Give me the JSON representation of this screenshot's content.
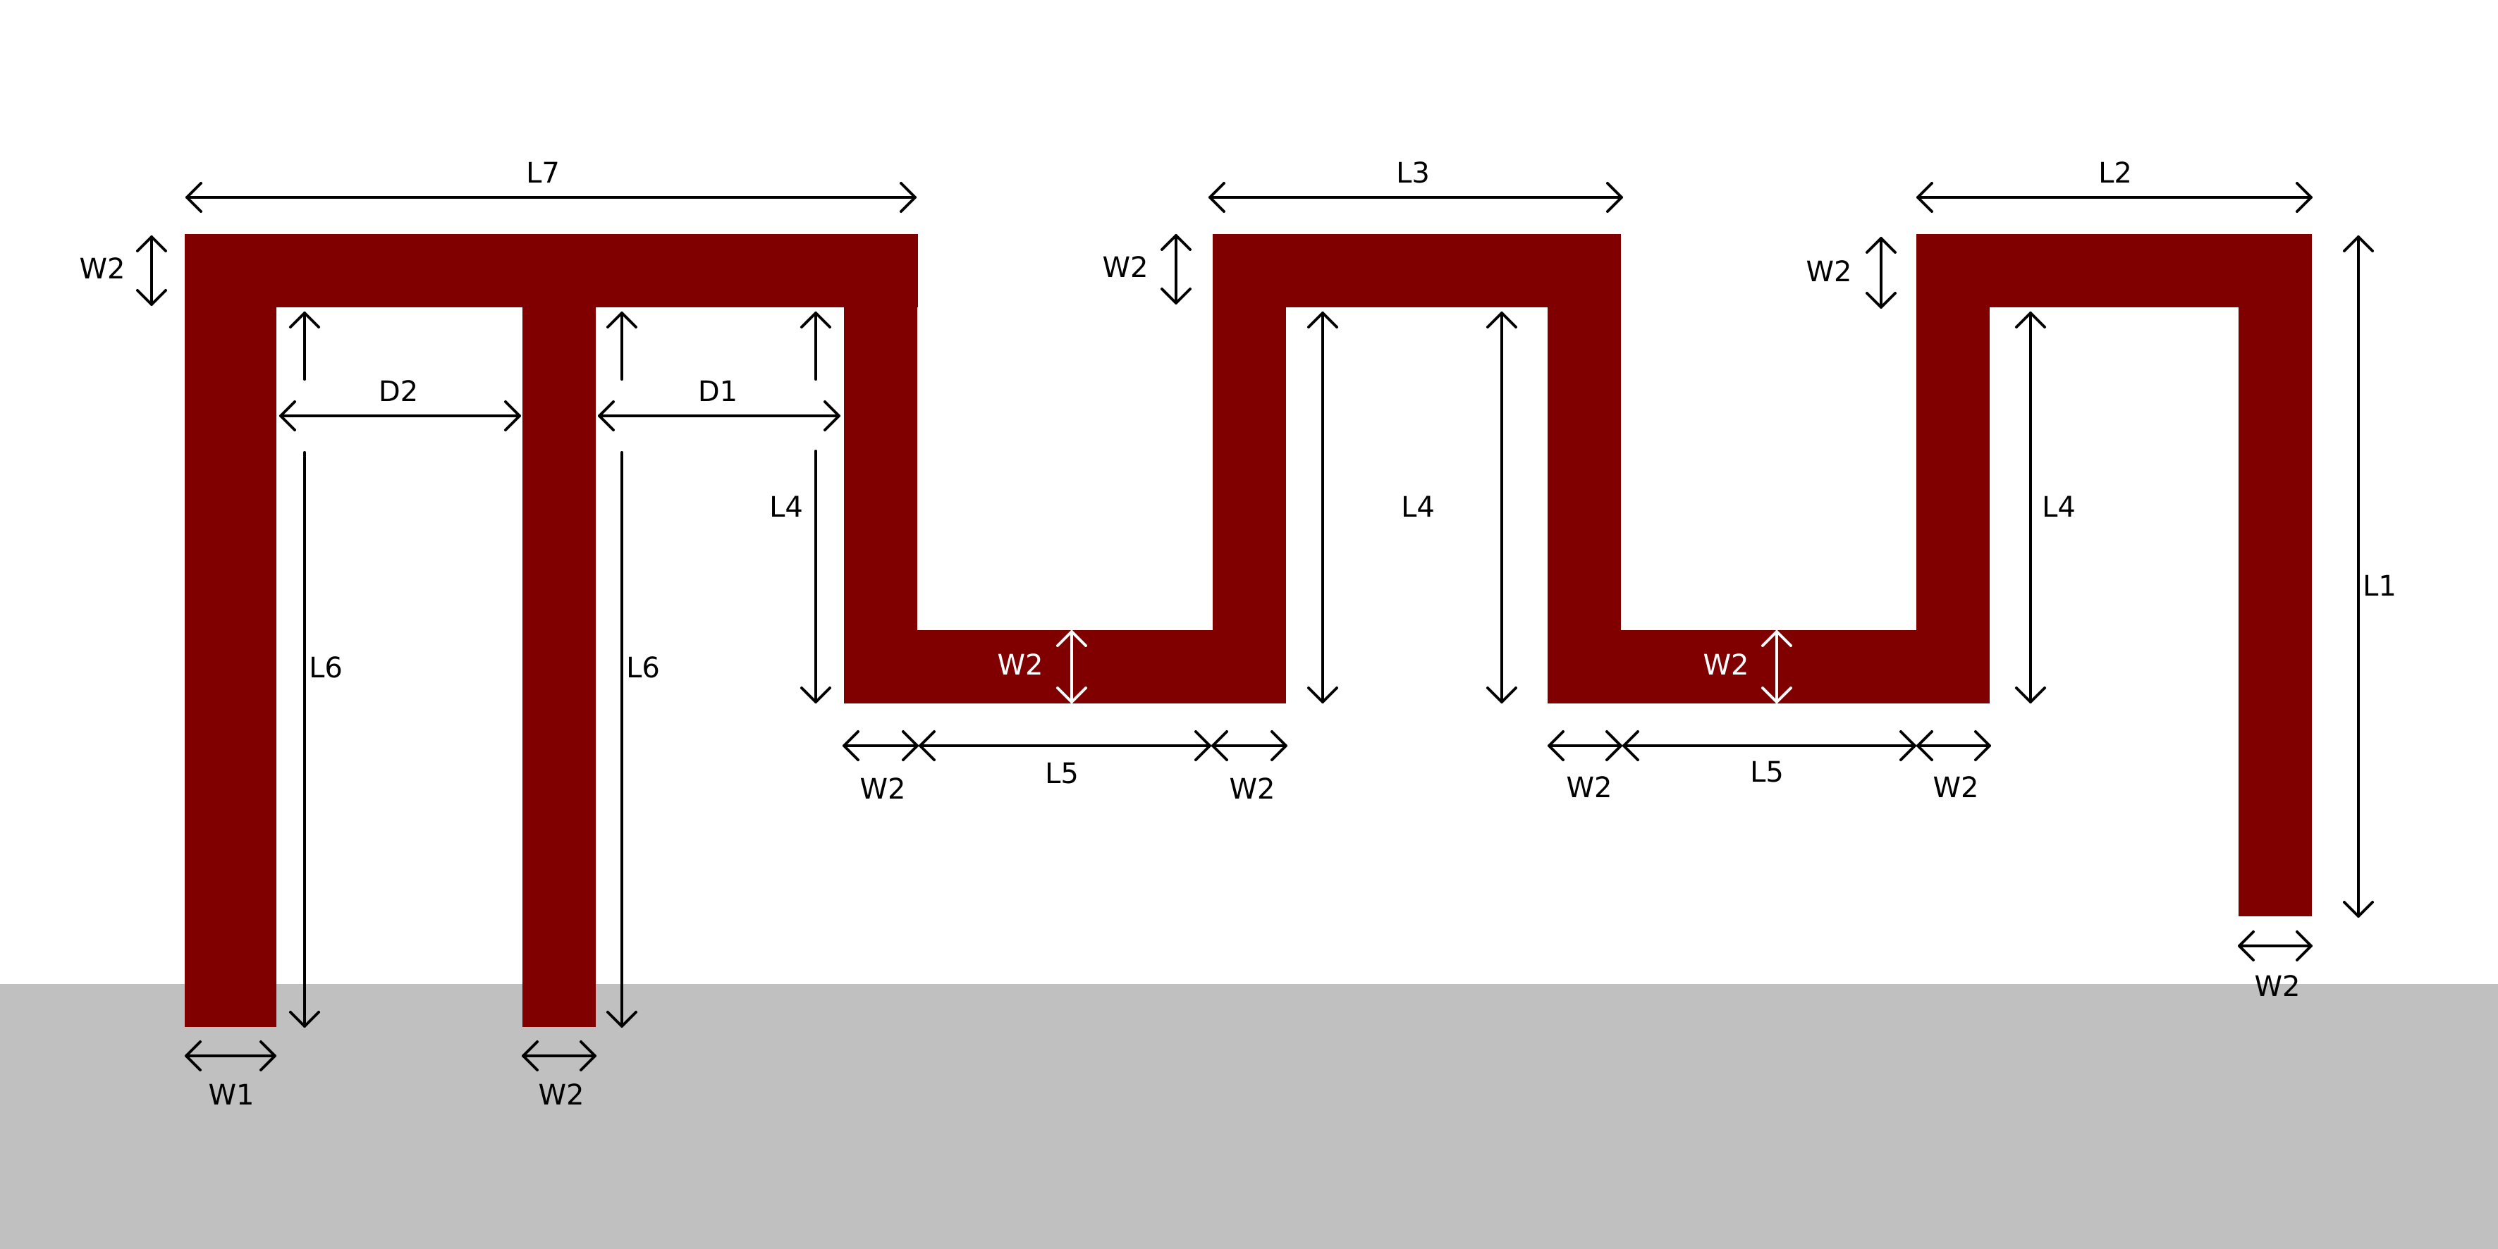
{
  "colors": {
    "background": "#ffffff",
    "ground_plane": "#c0c0c0",
    "trace": "#800000",
    "dimension_dark": "#000000",
    "dimension_light": "#ffffff"
  },
  "labels": {
    "L1": "L1",
    "L2": "L2",
    "L3": "L3",
    "L4": "L4",
    "L5": "L5",
    "L6": "L6",
    "L7": "L7",
    "W1": "W1",
    "W2": "W2",
    "D1": "D1",
    "D2": "D2"
  }
}
